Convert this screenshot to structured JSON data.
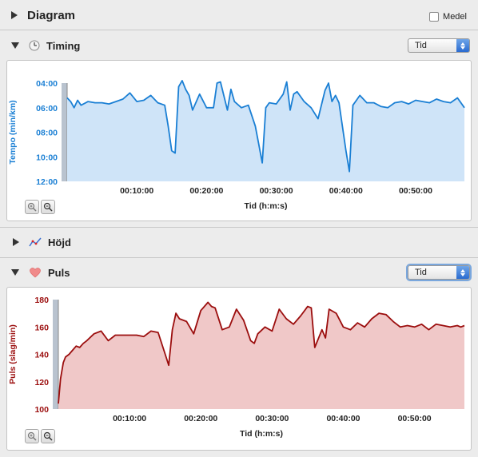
{
  "header": {
    "title": "Diagram",
    "medel_label": "Medel",
    "medel_checked": false
  },
  "timing": {
    "title": "Timing",
    "select_value": "Tid",
    "chart_data": {
      "type": "area",
      "ylabel": "Tempo (min/km)",
      "xlabel": "Tid (h:m:s)",
      "y_ticks": [
        "04:00",
        "06:00",
        "08:00",
        "10:00",
        "12:00"
      ],
      "x_ticks": [
        "00:10:00",
        "00:20:00",
        "00:30:00",
        "00:40:00",
        "00:50:00"
      ],
      "ylim": [
        4,
        12
      ],
      "y_inverted": true,
      "xlim": [
        0,
        57
      ],
      "color": "#1a7fd4",
      "fill": "#cfe4f8",
      "x": [
        0,
        0.5,
        1,
        1.5,
        2,
        3,
        4,
        5,
        6,
        7,
        8,
        9,
        10,
        11,
        12,
        13,
        14,
        14.5,
        15,
        15.5,
        16,
        16.5,
        17,
        17.5,
        18,
        19,
        20,
        21,
        21.5,
        22,
        23,
        23.5,
        24,
        25,
        26,
        27,
        27.5,
        28,
        28.5,
        29,
        30,
        31,
        31.5,
        32,
        32.5,
        33,
        34,
        35,
        36,
        37,
        37.5,
        38,
        38.5,
        39,
        40,
        40.5,
        41,
        41.5,
        42,
        43,
        44,
        45,
        46,
        47,
        48,
        49,
        50,
        51,
        52,
        53,
        54,
        55,
        56,
        57
      ],
      "y": [
        5.2,
        5.5,
        6.0,
        5.4,
        5.8,
        5.5,
        5.6,
        5.6,
        5.7,
        5.5,
        5.3,
        4.8,
        5.5,
        5.4,
        5.0,
        5.6,
        5.8,
        7.5,
        9.5,
        9.7,
        4.3,
        3.8,
        4.5,
        5.0,
        6.2,
        4.9,
        6.0,
        6.0,
        4.0,
        3.9,
        6.2,
        4.5,
        5.5,
        6.0,
        5.8,
        7.5,
        9.0,
        10.5,
        6.0,
        5.6,
        5.7,
        4.9,
        3.9,
        6.2,
        4.9,
        4.7,
        5.5,
        6.0,
        6.9,
        4.6,
        4.0,
        5.5,
        5.0,
        5.6,
        9.5,
        11.2,
        5.8,
        5.4,
        5.0,
        5.6,
        5.6,
        5.9,
        6.0,
        5.6,
        5.5,
        5.7,
        5.4,
        5.5,
        5.6,
        5.3,
        5.5,
        5.6,
        5.2,
        6.0
      ]
    }
  },
  "hojd": {
    "title": "Höjd"
  },
  "puls": {
    "title": "Puls",
    "select_value": "Tid",
    "chart_data": {
      "type": "area",
      "ylabel": "Puls (slag/min)",
      "xlabel": "Tid (h:m:s)",
      "y_ticks": [
        "180",
        "160",
        "140",
        "120",
        "100"
      ],
      "x_ticks": [
        "00:10:00",
        "00:20:00",
        "00:30:00",
        "00:40:00",
        "00:50:00"
      ],
      "ylim": [
        100,
        180
      ],
      "xlim": [
        0,
        57
      ],
      "color": "#9b0d0d",
      "fill": "#f0c8c8",
      "x": [
        0,
        0.3,
        0.7,
        1,
        1.5,
        2,
        2.5,
        3,
        3.5,
        4,
        5,
        6,
        7,
        8,
        9,
        10,
        11,
        12,
        13,
        14,
        15,
        15.5,
        16,
        16.5,
        17,
        18,
        19,
        20,
        21,
        21.5,
        22,
        23,
        24,
        25,
        26,
        27,
        27.5,
        28,
        29,
        30,
        31,
        32,
        33,
        34,
        35,
        35.5,
        36,
        37,
        37.5,
        38,
        39,
        40,
        41,
        42,
        43,
        44,
        45,
        46,
        47,
        48,
        49,
        50,
        51,
        52,
        53,
        54,
        55,
        56,
        56.5,
        57
      ],
      "y": [
        104,
        122,
        134,
        138,
        140,
        143,
        146,
        145,
        148,
        150,
        155,
        157,
        150,
        154,
        154,
        154,
        154,
        153,
        157,
        156,
        140,
        132,
        158,
        170,
        166,
        164,
        155,
        172,
        178,
        175,
        174,
        158,
        160,
        173,
        165,
        150,
        148,
        155,
        160,
        157,
        173,
        166,
        162,
        168,
        175,
        174,
        145,
        158,
        152,
        173,
        170,
        160,
        158,
        163,
        160,
        166,
        170,
        169,
        164,
        160,
        161,
        160,
        162,
        158,
        162,
        161,
        160,
        161,
        160,
        161
      ]
    }
  }
}
